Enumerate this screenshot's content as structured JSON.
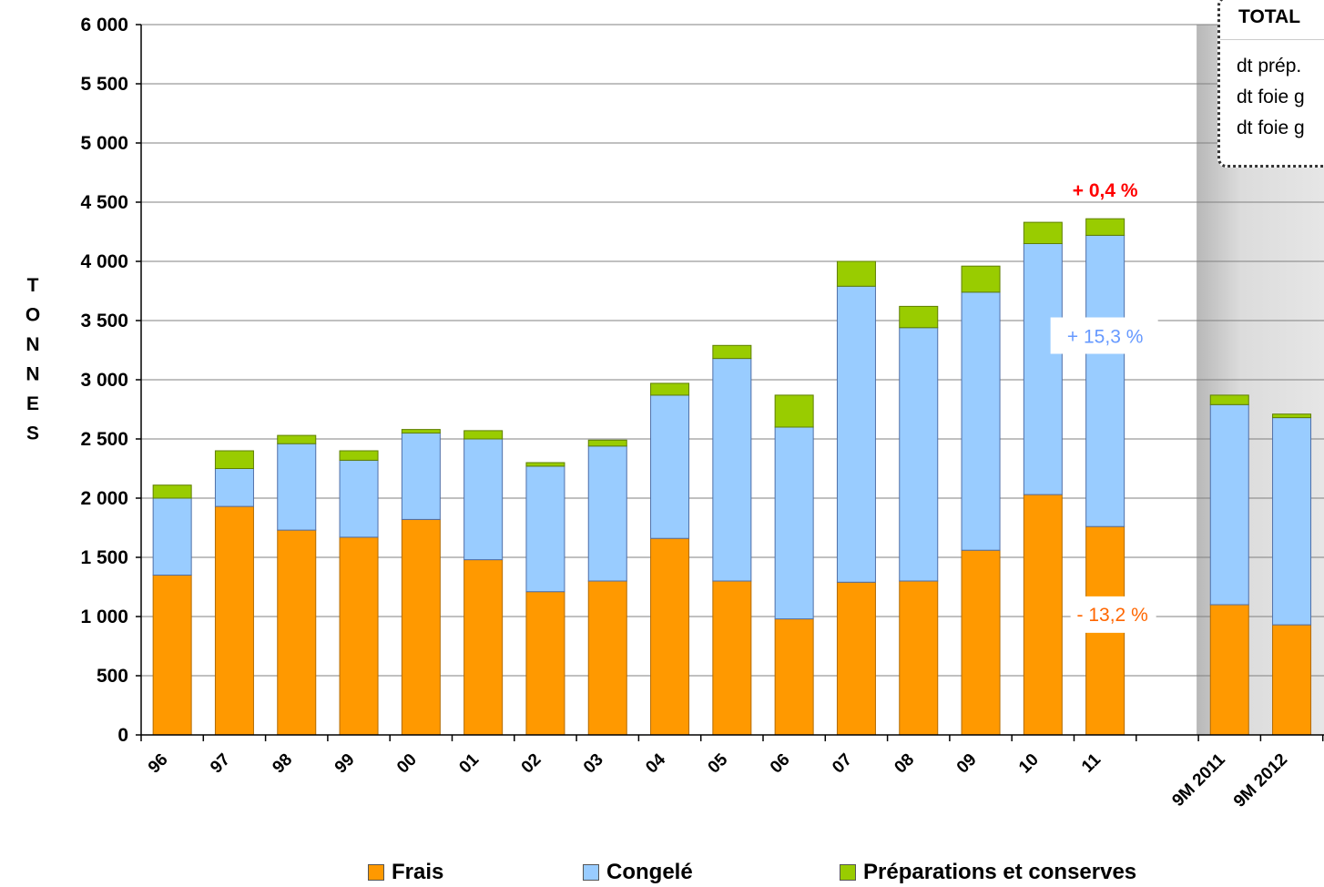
{
  "chart_data": {
    "type": "bar",
    "stacked": true,
    "title": "",
    "ylabel": "TONNES",
    "xlabel": "",
    "ylim": [
      0,
      6000
    ],
    "yticks": [
      0,
      500,
      1000,
      1500,
      2000,
      2500,
      3000,
      3500,
      4000,
      4500,
      5000,
      5500,
      6000
    ],
    "ytick_labels": [
      "0",
      "500",
      "1 000",
      "1 500",
      "2 000",
      "2 500",
      "3 000",
      "3 500",
      "4 000",
      "4 500",
      "5 000",
      "5 500",
      "6 000"
    ],
    "grid": true,
    "legend_position": "bottom",
    "categories": [
      "96",
      "97",
      "98",
      "99",
      "00",
      "01",
      "02",
      "03",
      "04",
      "05",
      "06",
      "07",
      "08",
      "09",
      "10",
      "11",
      "9M 2011",
      "9M 2012"
    ],
    "series": [
      {
        "name": "Frais",
        "color": "#ff9900",
        "values": [
          1350,
          1930,
          1730,
          1670,
          1820,
          1480,
          1210,
          1300,
          1660,
          1300,
          980,
          1290,
          1300,
          1560,
          2030,
          1760,
          1100,
          930
        ]
      },
      {
        "name": "Congelé",
        "color": "#99ccff",
        "values": [
          650,
          320,
          730,
          650,
          730,
          1020,
          1060,
          1140,
          1210,
          1880,
          1620,
          2500,
          2140,
          2180,
          2120,
          2460,
          1690,
          1750
        ]
      },
      {
        "name": "Préparations et conserves",
        "color": "#99cc00",
        "values": [
          110,
          150,
          70,
          80,
          30,
          70,
          30,
          50,
          100,
          110,
          270,
          210,
          180,
          220,
          180,
          140,
          80,
          30
        ]
      }
    ],
    "annotations": [
      {
        "text": "+ 0,4 %",
        "color": "#ff0000",
        "bold": true
      },
      {
        "text": "+ 15,3 %",
        "color": "#6699ff",
        "bold": false
      },
      {
        "text": "- 13,2 %",
        "color": "#ff6600",
        "bold": false
      }
    ]
  },
  "info_box": {
    "title": "TOTAL",
    "lines": [
      "dt prép.",
      "dt foie g",
      "dt foie g"
    ]
  }
}
